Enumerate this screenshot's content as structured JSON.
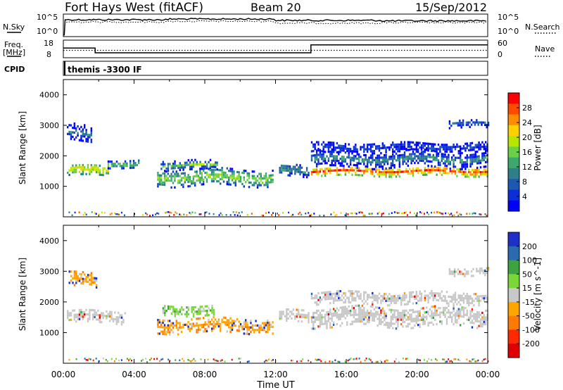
{
  "header": {
    "site": "Fort Hays West (fitACF)",
    "beam": "Beam 20",
    "date": "15/Sep/2012"
  },
  "top_panels": {
    "nsky": {
      "left_label": "N.Sky",
      "left_ticks": [
        "10^5",
        "10^0"
      ],
      "right_label": "N.Search",
      "right_ticks": [
        "10^5",
        "10^0"
      ]
    },
    "freq": {
      "left_label_1": "Freq.",
      "left_label_2": "[MHz]",
      "left_ticks": [
        "18",
        "8"
      ],
      "right_label": "Nave",
      "right_ticks": [
        "60",
        "0"
      ]
    },
    "cpid": {
      "left_label": "CPID",
      "text": "themis -3300 IF"
    }
  },
  "x_axis": {
    "ticks": [
      "00:00",
      "04:00",
      "08:00",
      "12:00",
      "16:00",
      "20:00",
      "00:00"
    ],
    "label": "Time UT"
  },
  "chart_data": [
    {
      "type": "line",
      "name": "nsky-panel",
      "x_range_hours": [
        0,
        24
      ],
      "series": [
        {
          "x": [
            0.05,
            0.1,
            6,
            12,
            18,
            24
          ],
          "y_relative": [
            0.05,
            0.75,
            0.78,
            0.72,
            0.7,
            0.7
          ]
        },
        {
          "x": [
            0.05,
            0.1,
            6,
            12,
            18,
            24
          ],
          "y_relative": [
            0.05,
            0.65,
            0.68,
            0.6,
            0.62,
            0.62
          ]
        }
      ]
    },
    {
      "type": "line",
      "name": "frequency-panel",
      "x": [
        0,
        1.8,
        1.8,
        14.0,
        14.0,
        24
      ],
      "y": [
        13.5,
        13.5,
        10.8,
        10.8,
        15.3,
        15.3
      ],
      "ylim": [
        8,
        18
      ],
      "nave_dotted_level": 12.2
    },
    {
      "type": "heatmap",
      "name": "power-panel",
      "ylabel": "Slant Range [km]",
      "ylim": [
        0,
        4500
      ],
      "yticks": [
        1000,
        2000,
        3000,
        4000
      ],
      "xlim": [
        0,
        24
      ],
      "colorbar": {
        "label": "Power [dB]",
        "ticks": [
          "28",
          "24",
          "20",
          "16",
          "12",
          "8",
          "4"
        ],
        "colors": [
          "#ff0000",
          "#ff4a00",
          "#ff8c00",
          "#ffd000",
          "#b8e600",
          "#6ad04a",
          "#3da86c",
          "#2f7f8a",
          "#1f58b0",
          "#0a2fd8",
          "#0000ff"
        ]
      },
      "regions": [
        {
          "start": 0.2,
          "end": 2.5,
          "center": 1500,
          "halfwidth": 180,
          "dB": 22
        },
        {
          "start": 2.5,
          "end": 4.3,
          "center": 1700,
          "halfwidth": 120,
          "dB": 16
        },
        {
          "start": 0.2,
          "end": 1.6,
          "center": 2700,
          "halfwidth": 300,
          "dB": 8
        },
        {
          "start": 5.3,
          "end": 11.8,
          "center": 1250,
          "halfwidth": 260,
          "dB": 18
        },
        {
          "start": 5.5,
          "end": 8.7,
          "center": 1650,
          "halfwidth": 150,
          "dB": 14
        },
        {
          "start": 12.2,
          "end": 13.9,
          "center": 1500,
          "halfwidth": 200,
          "dB": 12
        },
        {
          "start": 14.0,
          "end": 24.0,
          "center": 1450,
          "halfwidth": 140,
          "dB": 28
        },
        {
          "start": 14.0,
          "end": 24.0,
          "center": 1850,
          "halfwidth": 260,
          "dB": 10
        },
        {
          "start": 14.0,
          "end": 24.0,
          "center": 2250,
          "halfwidth": 180,
          "dB": 6
        },
        {
          "start": 21.8,
          "end": 24.0,
          "center": 3000,
          "halfwidth": 120,
          "dB": 8
        }
      ]
    },
    {
      "type": "heatmap",
      "name": "velocity-panel",
      "ylabel": "Slant Range [km]",
      "ylim": [
        0,
        4500
      ],
      "yticks": [
        1000,
        2000,
        3000,
        4000
      ],
      "xlim": [
        0,
        24
      ],
      "colorbar": {
        "label": "Velocity [m s^-1]",
        "ticks": [
          "200",
          "100",
          "50",
          "15",
          "-15",
          "-50",
          "-100",
          "-200"
        ],
        "colors": [
          "#1f30c8",
          "#2a6ab0",
          "#3da240",
          "#7bd63a",
          "#c8c8c8",
          "#ffa500",
          "#ff7a00",
          "#ff2a00",
          "#e00000"
        ]
      },
      "regions": [
        {
          "start": 0.2,
          "end": 3.5,
          "center": 1500,
          "halfwidth": 220,
          "v": 0
        },
        {
          "start": 0.3,
          "end": 1.9,
          "center": 2700,
          "halfwidth": 250,
          "v": -80
        },
        {
          "start": 5.6,
          "end": 8.5,
          "center": 1700,
          "halfwidth": 170,
          "v": 40
        },
        {
          "start": 5.3,
          "end": 11.8,
          "center": 1200,
          "halfwidth": 240,
          "v": -30
        },
        {
          "start": 12.2,
          "end": 13.9,
          "center": 1500,
          "halfwidth": 200,
          "v": 0
        },
        {
          "start": 14.0,
          "end": 24.0,
          "center": 1500,
          "halfwidth": 330,
          "v": 0
        },
        {
          "start": 14.0,
          "end": 24.0,
          "center": 2100,
          "halfwidth": 200,
          "v": 0
        },
        {
          "start": 21.8,
          "end": 24.0,
          "center": 2950,
          "halfwidth": 120,
          "v": 0
        }
      ]
    }
  ]
}
